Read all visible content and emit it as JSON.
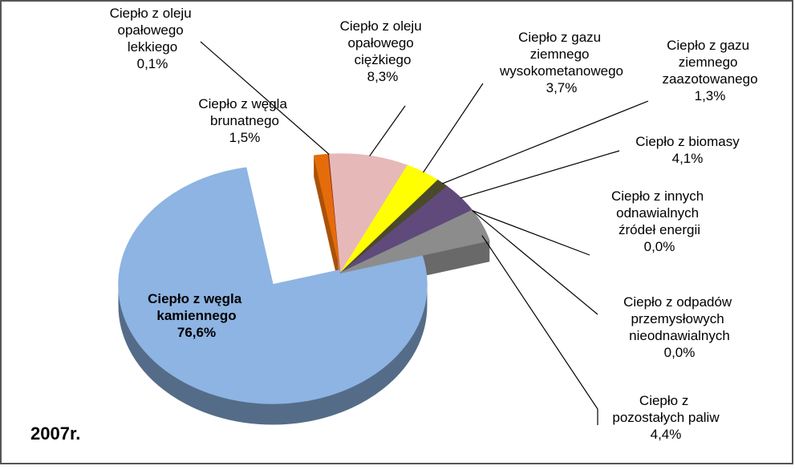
{
  "chart_data": {
    "type": "pie",
    "annotation": "2007r.",
    "categories": [
      "Ciepło z węgla kamiennego",
      "Ciepło z węgla brunatnego",
      "Ciepło z oleju opałowego lekkiego",
      "Ciepło z oleju opałowego ciężkiego",
      "Ciepło z gazu ziemnego wysokometanowego",
      "Ciepło z gazu ziemnego zaazotowanego",
      "Ciepło z biomasy",
      "Ciepło z innych odnawialnych źródeł energii",
      "Ciepło z odpadów przemysłowych nieodnawialnych",
      "Ciepło z pozostałych paliw"
    ],
    "values": [
      76.6,
      1.5,
      0.1,
      8.3,
      3.7,
      1.3,
      4.1,
      0.0,
      0.0,
      4.4
    ],
    "value_labels": [
      "76,6%",
      "1,5%",
      "0,1%",
      "8,3%",
      "3,7%",
      "1,3%",
      "4,1%",
      "0,0%",
      "0,0%",
      "4,4%"
    ],
    "colors": [
      "#8db4e2",
      "#e46c0a",
      "#8b2320",
      "#e6b9b8",
      "#ffff00",
      "#4a4a2a",
      "#604a7b",
      "#00a050",
      "#1f4e5f",
      "#8c8c8c"
    ]
  }
}
